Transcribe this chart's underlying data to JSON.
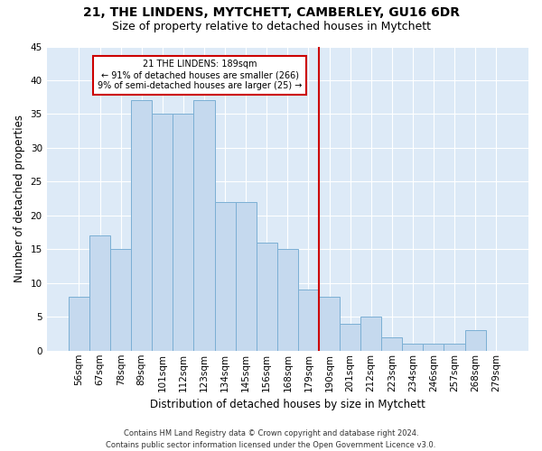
{
  "title1": "21, THE LINDENS, MYTCHETT, CAMBERLEY, GU16 6DR",
  "title2": "Size of property relative to detached houses in Mytchett",
  "xlabel": "Distribution of detached houses by size in Mytchett",
  "ylabel": "Number of detached properties",
  "categories": [
    "56sqm",
    "67sqm",
    "78sqm",
    "89sqm",
    "101sqm",
    "112sqm",
    "123sqm",
    "134sqm",
    "145sqm",
    "156sqm",
    "168sqm",
    "179sqm",
    "190sqm",
    "201sqm",
    "212sqm",
    "223sqm",
    "234sqm",
    "246sqm",
    "257sqm",
    "268sqm",
    "279sqm"
  ],
  "values": [
    8,
    17,
    15,
    37,
    35,
    35,
    37,
    22,
    22,
    16,
    15,
    9,
    8,
    4,
    5,
    2,
    1,
    1,
    1,
    3,
    0
  ],
  "bar_color": "#c5d9ee",
  "bar_edge_color": "#7bafd4",
  "vline_color": "#cc0000",
  "annotation_text": "21 THE LINDENS: 189sqm\n← 91% of detached houses are smaller (266)\n9% of semi-detached houses are larger (25) →",
  "annotation_box_color": "#ffffff",
  "annotation_border_color": "#cc0000",
  "footer": "Contains HM Land Registry data © Crown copyright and database right 2024.\nContains public sector information licensed under the Open Government Licence v3.0.",
  "ylim": [
    0,
    45
  ],
  "fig_background_color": "#ffffff",
  "ax_background_color": "#ddeaf7",
  "grid_color": "#ffffff",
  "title_fontsize": 10,
  "subtitle_fontsize": 9,
  "axis_label_fontsize": 8.5,
  "tick_fontsize": 7.5,
  "annotation_fontsize": 7,
  "footer_fontsize": 6
}
